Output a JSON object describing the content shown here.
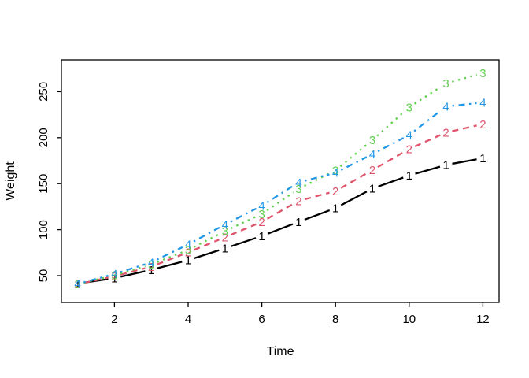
{
  "figure": {
    "background": "#ffffff",
    "title": ""
  },
  "chart_data": {
    "type": "line",
    "title": "",
    "xlabel": "Time",
    "ylabel": "Weight",
    "grid": false,
    "legend_position": "none",
    "point_marker_style": "digit-characters",
    "x": [
      1,
      2,
      3,
      4,
      5,
      6,
      7,
      8,
      9,
      10,
      11,
      12
    ],
    "xticks": [
      2,
      4,
      6,
      8,
      10,
      12
    ],
    "xtick_labels": [
      "2",
      "4",
      "6",
      "8",
      "10",
      "12"
    ],
    "yticks": [
      50,
      100,
      150,
      200,
      250
    ],
    "ytick_labels": [
      "50",
      "100",
      "150",
      "200",
      "250"
    ],
    "xlim": [
      0.56,
      12.44
    ],
    "ylim": [
      20.9,
      284.6
    ],
    "axis_color": "#000000",
    "series": [
      {
        "name": "1",
        "pch": "1",
        "color": "#000000",
        "linetype": "solid",
        "values": [
          41.4,
          47.3,
          56.3,
          66.8,
          79.7,
          93.1,
          108.5,
          123.4,
          144.6,
          158.9,
          170.4,
          177.8
        ]
      },
      {
        "name": "2",
        "pch": "2",
        "color": "#DF536B",
        "linetype": "dashed",
        "values": [
          40.7,
          49.4,
          59.8,
          75.4,
          91.7,
          108.5,
          131.3,
          141.9,
          164.7,
          187.7,
          205.6,
          214.7
        ]
      },
      {
        "name": "3",
        "pch": "3",
        "color": "#61D04F",
        "linetype": "dotted",
        "values": [
          40.8,
          50.4,
          62.2,
          77.9,
          98.4,
          117.1,
          144.4,
          164.5,
          197.4,
          233.1,
          258.9,
          270.3
        ]
      },
      {
        "name": "4",
        "pch": "4",
        "color": "#2297E6",
        "linetype": "dotdash",
        "values": [
          41.0,
          51.8,
          64.5,
          83.9,
          105.6,
          126.0,
          151.4,
          161.8,
          182.1,
          202.9,
          233.9,
          238.3
        ]
      }
    ]
  }
}
